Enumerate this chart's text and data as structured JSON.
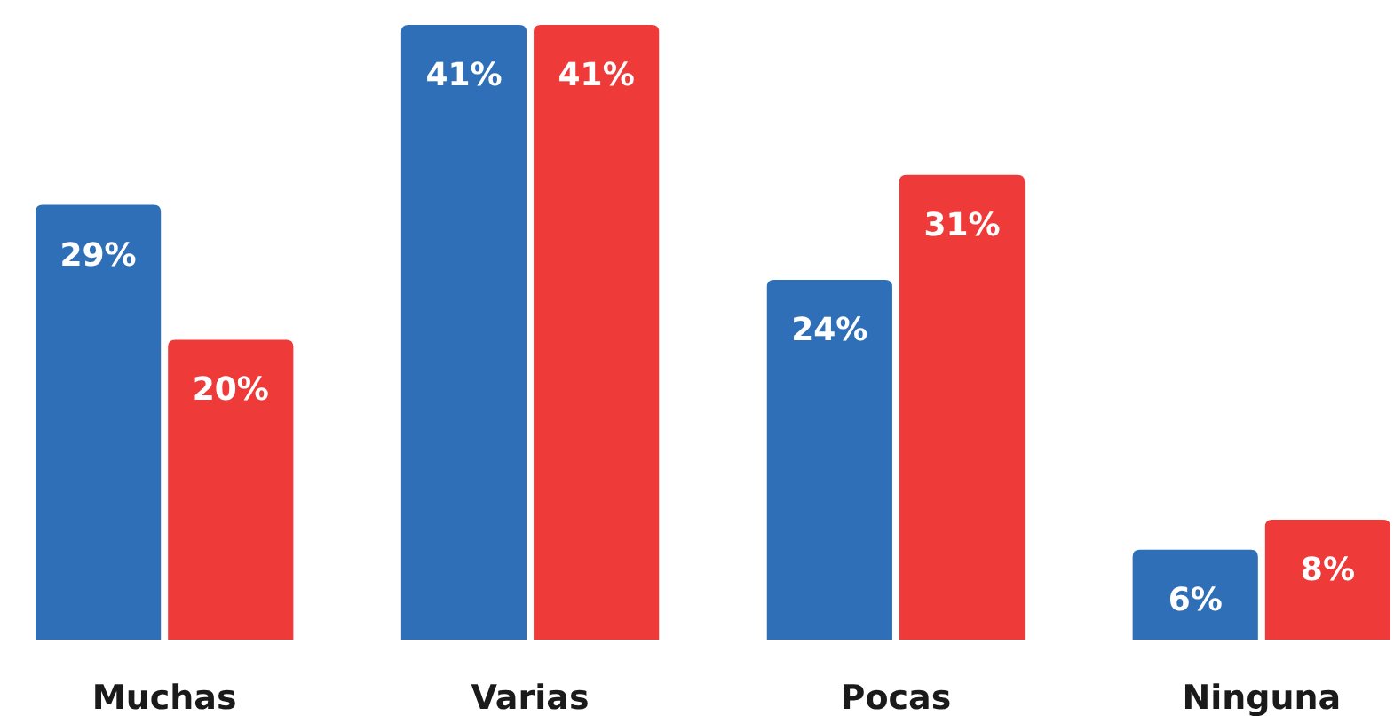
{
  "chart_data": {
    "type": "bar",
    "categories": [
      "Muchas",
      "Varias",
      "Pocas",
      "Ninguna"
    ],
    "series": [
      {
        "color": "#2e6fb7",
        "values": [
          29,
          41,
          24,
          6
        ],
        "value_labels": [
          "29%",
          "41%",
          "24%",
          "6%"
        ]
      },
      {
        "color": "#ef3a3a",
        "values": [
          20,
          41,
          31,
          8
        ],
        "value_labels": [
          "20%",
          "41%",
          "31%",
          "8%"
        ]
      }
    ]
  }
}
